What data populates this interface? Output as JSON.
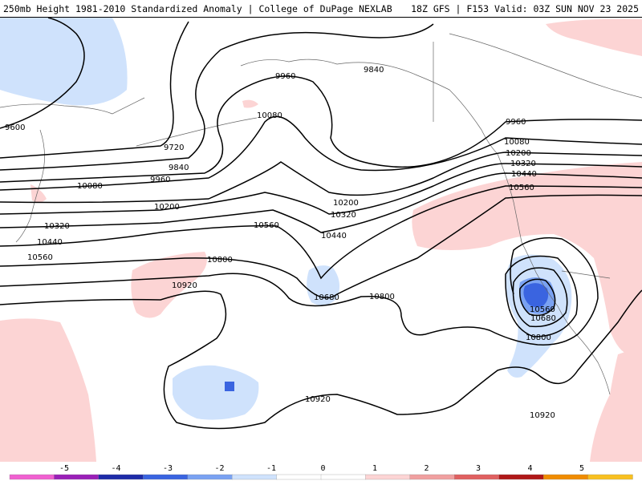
{
  "header": {
    "left": "250mb Height 1981-2010 Standardized Anomaly | College of DuPage NEXLAB",
    "right": "18Z GFS | F153 Valid: 03Z SUN NOV 23 2025"
  },
  "legend": {
    "ticks": [
      "-5",
      "-4",
      "-3",
      "-2",
      "-1",
      "0",
      "1",
      "2",
      "3",
      "4",
      "5"
    ],
    "colors": [
      "#f060d0",
      "#9a20b8",
      "#1e2ca8",
      "#3a64e0",
      "#7aa2f2",
      "#cfe2fc",
      "#ffffff",
      "#ffffff",
      "#fcd4d4",
      "#f0a0a0",
      "#e06060",
      "#b01818",
      "#f08c00",
      "#f8c020"
    ]
  },
  "contour_labels": {
    "c9600": "9600",
    "c9720": "9720",
    "c9840a": "9840",
    "c9840b": "9840",
    "c9960a": "9960",
    "c9960b": "9960",
    "c9960c": "9960",
    "c10080a": "10080",
    "c10080b": "10080",
    "c10080c": "10080",
    "c10200a": "10200",
    "c10200b": "10200",
    "c10200c": "10200",
    "c10320a": "10320",
    "c10320b": "10320",
    "c10320c": "10320",
    "c10440a": "10440",
    "c10440b": "10440",
    "c10440c": "10440",
    "c10560a": "10560",
    "c10560b": "10560",
    "c10560c": "10560",
    "c10560d": "10560",
    "c10680a": "10680",
    "c10680b": "10680",
    "c10800a": "10800",
    "c10800b": "10800",
    "c10800c": "10800",
    "c10920a": "10920",
    "c10920b": "10920",
    "c10920c": "10920"
  }
}
